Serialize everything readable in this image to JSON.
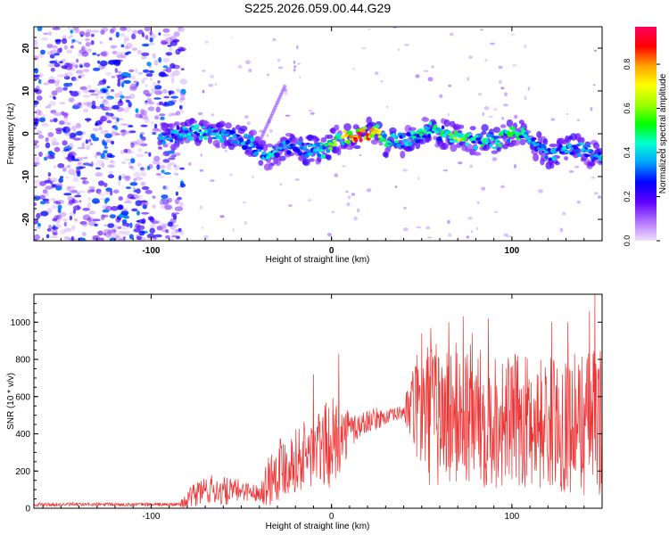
{
  "title": "S225.2026.059.00.44.G29",
  "chart_data": [
    {
      "type": "heatmap",
      "title": "S225.2026.059.00.44.G29",
      "xlabel": "Height of straight line (km)",
      "ylabel": "Frequency (Hz)",
      "xlim": [
        -165,
        150
      ],
      "ylim": [
        -25,
        25
      ],
      "x_ticks": [
        -100,
        0,
        100
      ],
      "y_ticks": [
        -20,
        -10,
        0,
        10,
        20
      ],
      "colorbar": {
        "label": "Normalized spectral amplitude",
        "range": [
          0,
          0.97
        ],
        "ticks": [
          0.0,
          0.2,
          0.4,
          0.6,
          0.8
        ],
        "tick_labels": [
          "0.0",
          "0.2",
          "0.4",
          "0.6",
          "0.8"
        ],
        "colors": [
          "#f0e0ff",
          "#b070ff",
          "#6000ff",
          "#0000ff",
          "#00a0ff",
          "#00ffd0",
          "#00ff00",
          "#a0ff00",
          "#ffff00",
          "#ffa000",
          "#ff0000",
          "#ff0060"
        ]
      },
      "noise_region": {
        "x_range": [
          -165,
          -82
        ],
        "y_range": [
          -25,
          25
        ]
      },
      "ridge": {
        "description_points_x": [
          -95,
          -85,
          -75,
          -65,
          -55,
          -45,
          -40,
          -35,
          -30,
          -25,
          -20,
          -15,
          -10,
          -5,
          0,
          5,
          10,
          15,
          20,
          25,
          30,
          35,
          40,
          45,
          50,
          55,
          60,
          65,
          70,
          75,
          80,
          85,
          90,
          95,
          100,
          105,
          110,
          115,
          120,
          125,
          130,
          135,
          140,
          145,
          150
        ],
        "frequency_hz": [
          -1,
          0,
          0.5,
          0,
          -1,
          -2,
          -4,
          -5,
          -4,
          -3,
          -3,
          -4,
          -3,
          -4,
          -2,
          -1,
          -1,
          0,
          0,
          1,
          -2,
          -1,
          -2,
          -1,
          0,
          1,
          0,
          0,
          -1,
          -1,
          -2,
          -1,
          -2,
          -1,
          0,
          0,
          -2,
          -3,
          -5,
          -4,
          -4,
          -3,
          -4,
          -5,
          -5
        ],
        "peak_amplitude": [
          0.35,
          0.4,
          0.45,
          0.4,
          0.35,
          0.4,
          0.35,
          0.45,
          0.4,
          0.35,
          0.3,
          0.35,
          0.4,
          0.45,
          0.6,
          0.7,
          0.8,
          0.95,
          0.85,
          0.75,
          0.45,
          0.5,
          0.4,
          0.45,
          0.5,
          0.45,
          0.5,
          0.55,
          0.7,
          0.5,
          0.45,
          0.5,
          0.45,
          0.5,
          0.55,
          0.45,
          0.4,
          0.35,
          0.4,
          0.35,
          0.4,
          0.35,
          0.4,
          0.35,
          0.4
        ]
      }
    },
    {
      "type": "line",
      "xlabel": "Height of straight line (km)",
      "ylabel": "SNR (10 * v/v)",
      "xlim": [
        -165,
        150
      ],
      "ylim": [
        0,
        1150
      ],
      "x_ticks": [
        -100,
        0,
        100
      ],
      "y_ticks": [
        0,
        200,
        400,
        600,
        800,
        1000
      ],
      "series": [
        {
          "color": "#ee3333",
          "envelope_x": [
            -165,
            -140,
            -120,
            -100,
            -85,
            -80,
            -75,
            -70,
            -65,
            -60,
            -55,
            -50,
            -45,
            -40,
            -35,
            -30,
            -25,
            -20,
            -15,
            -10,
            -5,
            0,
            5,
            10,
            15,
            20,
            25,
            30,
            35,
            40,
            45,
            50,
            55,
            60,
            65,
            70,
            75,
            80,
            85,
            90,
            95,
            100,
            105,
            110,
            115,
            120,
            125,
            130,
            135,
            140,
            145,
            150
          ],
          "envelope_mean": [
            20,
            20,
            20,
            20,
            20,
            40,
            80,
            100,
            100,
            90,
            90,
            100,
            90,
            80,
            150,
            220,
            240,
            260,
            280,
            300,
            330,
            350,
            380,
            420,
            440,
            470,
            480,
            490,
            500,
            520,
            540,
            520,
            510,
            500,
            500,
            500,
            500,
            490,
            480,
            480,
            470,
            470,
            470,
            470,
            460,
            460,
            460,
            460,
            460,
            460,
            470,
            470
          ],
          "envelope_amp": [
            10,
            10,
            10,
            10,
            10,
            40,
            80,
            80,
            80,
            80,
            70,
            60,
            50,
            40,
            150,
            180,
            180,
            170,
            200,
            200,
            220,
            250,
            180,
            120,
            80,
            60,
            60,
            40,
            40,
            40,
            250,
            350,
            400,
            400,
            400,
            400,
            400,
            380,
            380,
            380,
            360,
            360,
            360,
            360,
            360,
            360,
            360,
            380,
            380,
            400,
            400,
            400
          ],
          "peaks": [
            [
              -10,
              720
            ],
            [
              4,
              830
            ],
            [
              50,
              940
            ],
            [
              55,
              970
            ],
            [
              65,
              1000
            ],
            [
              73,
              1030
            ],
            [
              78,
              940
            ],
            [
              87,
              1020
            ],
            [
              122,
              1000
            ],
            [
              131,
              1000
            ],
            [
              143,
              1060
            ],
            [
              146,
              1150
            ]
          ]
        }
      ]
    }
  ]
}
